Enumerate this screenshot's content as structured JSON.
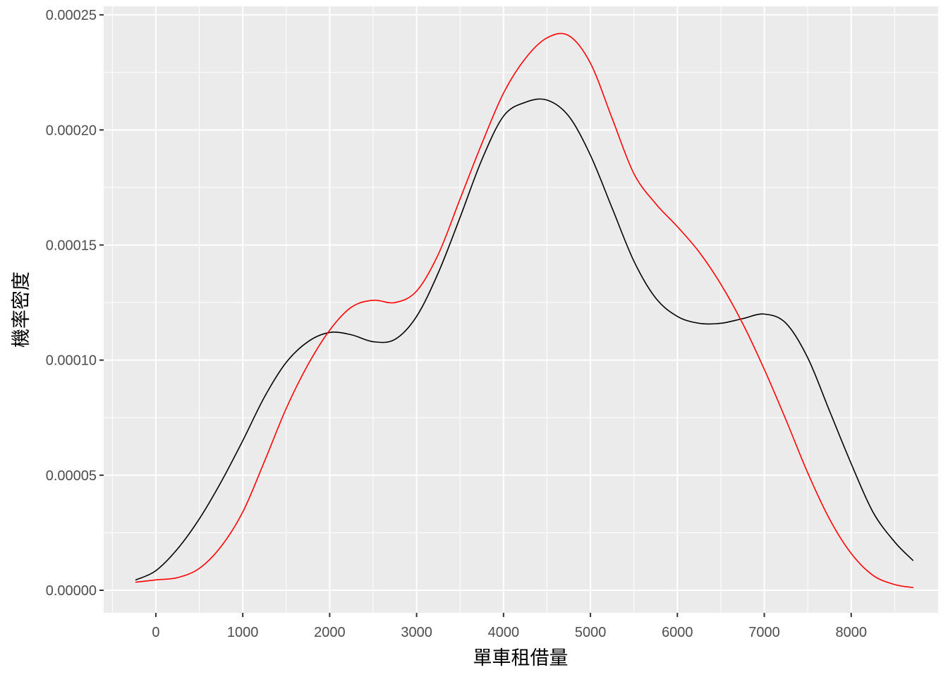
{
  "chart_data": {
    "type": "line",
    "title": "",
    "xlabel": "單車租借量",
    "ylabel": "機率密度",
    "xlim": [
      -600,
      9000
    ],
    "ylim": [
      -9.8e-06,
      0.0002537
    ],
    "x_ticks": [
      0,
      1000,
      2000,
      3000,
      4000,
      5000,
      6000,
      7000,
      8000
    ],
    "x_tick_labels": [
      "0",
      "1000",
      "2000",
      "3000",
      "4000",
      "5000",
      "6000",
      "7000",
      "8000"
    ],
    "y_ticks": [
      0,
      5e-05,
      0.0001,
      0.00015,
      0.0002,
      0.00025
    ],
    "y_tick_labels": [
      "0.00000",
      "0.00005",
      "0.00010",
      "0.00015",
      "0.00020",
      "0.00025"
    ],
    "grid": true,
    "panel_background": "#ebebeb",
    "grid_color": "#ffffff",
    "series": [
      {
        "color": "#000000",
        "x": [
          -230,
          0,
          250,
          500,
          750,
          1000,
          1250,
          1500,
          1750,
          2000,
          2250,
          2500,
          2750,
          3000,
          3250,
          3500,
          3750,
          4000,
          4250,
          4500,
          4750,
          5000,
          5250,
          5500,
          5750,
          6000,
          6250,
          6500,
          6750,
          7000,
          7250,
          7500,
          7750,
          8000,
          8250,
          8500,
          8710
        ],
        "y": [
          4.5e-06,
          8.5e-06,
          1.8e-05,
          3.1e-05,
          4.7e-05,
          6.5e-05,
          8.4e-05,
          9.9e-05,
          0.000108,
          0.000112,
          0.000111,
          0.000108,
          0.000109,
          0.000119,
          0.000138,
          0.000162,
          0.000187,
          0.000206,
          0.000212,
          0.000213,
          0.000206,
          0.000189,
          0.000166,
          0.000143,
          0.000127,
          0.000119,
          0.000116,
          0.000116,
          0.000118,
          0.00012,
          0.000116,
          0.000101,
          7.8e-05,
          5.5e-05,
          3.4e-05,
          2.1e-05,
          1.3e-05
        ]
      },
      {
        "color": "#ff0000",
        "x": [
          -230,
          0,
          250,
          500,
          750,
          1000,
          1250,
          1500,
          1750,
          2000,
          2250,
          2500,
          2750,
          3000,
          3250,
          3500,
          3750,
          4000,
          4250,
          4500,
          4750,
          5000,
          5250,
          5500,
          5750,
          6000,
          6250,
          6500,
          6750,
          7000,
          7250,
          7500,
          7750,
          8000,
          8250,
          8500,
          8710
        ],
        "y": [
          3.5e-06,
          4.5e-06,
          5.5e-06,
          9.5e-06,
          1.9e-05,
          3.4e-05,
          5.6e-05,
          7.9e-05,
          9.8e-05,
          0.000113,
          0.000123,
          0.000126,
          0.000125,
          0.00013,
          0.000146,
          0.00017,
          0.000194,
          0.000216,
          0.000231,
          0.00024,
          0.000241,
          0.000229,
          0.000205,
          0.000181,
          0.000168,
          0.000158,
          0.000147,
          0.000133,
          0.000116,
          9.6e-05,
          7.4e-05,
          5.1e-05,
          3.1e-05,
          1.6e-05,
          6.5e-06,
          2.5e-06,
          1.2e-06
        ]
      }
    ]
  }
}
